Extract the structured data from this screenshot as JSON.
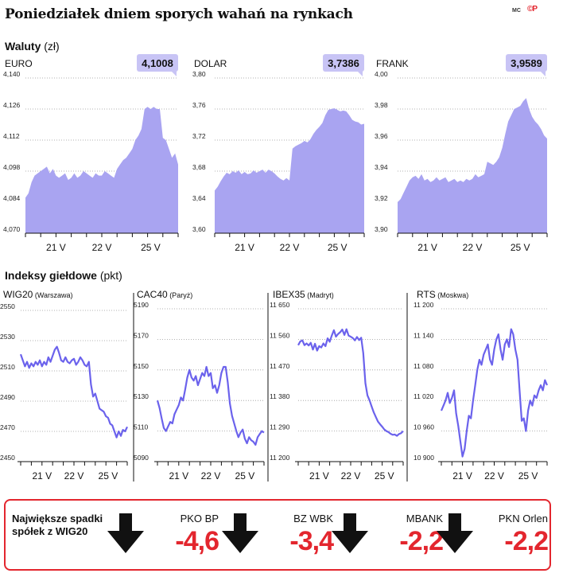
{
  "title": "Poniedziałek dniem sporych wahań na rynkach",
  "credit": "MC",
  "logo": "©P",
  "currencies_header": {
    "label": "Waluty",
    "unit": "(zł)"
  },
  "indices_header": {
    "label": "Indeksy giełdowe",
    "unit": "(pkt)"
  },
  "colors": {
    "fill": "#a9a4f1",
    "line": "#6b62ec",
    "accent": "#e3262e",
    "badge": "#c8c4f5"
  },
  "chart_data": [
    {
      "type": "area",
      "name": "EURO",
      "badge": "4,1008",
      "ylim": [
        4.07,
        4.14
      ],
      "yticks": [
        4.14,
        4.126,
        4.112,
        4.098,
        4.084,
        4.07
      ],
      "ytick_labels": [
        "4,140",
        "4,126",
        "4,112",
        "4,098",
        "4,084",
        "4,070"
      ],
      "xticks": [
        "21 V",
        "22 V",
        "25 V"
      ],
      "x": [
        0,
        2,
        4,
        6,
        8,
        10,
        12,
        14,
        16,
        18,
        20,
        22,
        24,
        26,
        28,
        30,
        32,
        34,
        36,
        38,
        40,
        42,
        44,
        46,
        48,
        50,
        52,
        54,
        56,
        58,
        60,
        62,
        64,
        66,
        68,
        70,
        72,
        74,
        76,
        78,
        80,
        82,
        84,
        86,
        88,
        90,
        92,
        94,
        96,
        98,
        100
      ],
      "values": [
        4.086,
        4.088,
        4.093,
        4.096,
        4.097,
        4.098,
        4.099,
        4.1,
        4.097,
        4.099,
        4.096,
        4.095,
        4.096,
        4.097,
        4.094,
        4.095,
        4.097,
        4.095,
        4.096,
        4.098,
        4.097,
        4.096,
        4.095,
        4.097,
        4.096,
        4.096,
        4.098,
        4.097,
        4.096,
        4.095,
        4.099,
        4.101,
        4.103,
        4.104,
        4.106,
        4.108,
        4.112,
        4.114,
        4.117,
        4.126,
        4.127,
        4.126,
        4.127,
        4.126,
        4.126,
        4.113,
        4.112,
        4.108,
        4.104,
        4.106,
        4.101
      ]
    },
    {
      "type": "area",
      "name": "DOLAR",
      "badge": "3,7386",
      "ylim": [
        3.6,
        3.8
      ],
      "yticks": [
        3.8,
        3.76,
        3.72,
        3.68,
        3.64,
        3.6
      ],
      "ytick_labels": [
        "3,80",
        "3,76",
        "3,72",
        "3,68",
        "3,64",
        "3,60"
      ],
      "xticks": [
        "21 V",
        "22 V",
        "25 V"
      ],
      "x": [
        0,
        2,
        4,
        6,
        8,
        10,
        12,
        14,
        16,
        18,
        20,
        22,
        24,
        26,
        28,
        30,
        32,
        34,
        36,
        38,
        40,
        42,
        44,
        46,
        48,
        50,
        52,
        54,
        56,
        58,
        60,
        62,
        64,
        66,
        68,
        70,
        72,
        74,
        76,
        78,
        80,
        82,
        84,
        86,
        88,
        90,
        92,
        94,
        96,
        98,
        100
      ],
      "values": [
        3.655,
        3.66,
        3.667,
        3.673,
        3.678,
        3.676,
        3.68,
        3.678,
        3.681,
        3.676,
        3.679,
        3.676,
        3.677,
        3.681,
        3.678,
        3.68,
        3.682,
        3.678,
        3.682,
        3.68,
        3.677,
        3.673,
        3.67,
        3.668,
        3.671,
        3.668,
        3.709,
        3.712,
        3.714,
        3.716,
        3.719,
        3.717,
        3.721,
        3.728,
        3.733,
        3.737,
        3.742,
        3.752,
        3.759,
        3.76,
        3.761,
        3.759,
        3.757,
        3.758,
        3.757,
        3.752,
        3.746,
        3.744,
        3.743,
        3.74,
        3.741
      ]
    },
    {
      "type": "area",
      "name": "FRANK",
      "badge": "3,9589",
      "ylim": [
        3.9,
        4.0
      ],
      "yticks": [
        4.0,
        3.98,
        3.96,
        3.94,
        3.92,
        3.9
      ],
      "ytick_labels": [
        "4,00",
        "3,98",
        "3,96",
        "3,94",
        "3,92",
        "3,90"
      ],
      "xticks": [
        "21 V",
        "22 V",
        "25 V"
      ],
      "x": [
        0,
        2,
        4,
        6,
        8,
        10,
        12,
        14,
        16,
        18,
        20,
        22,
        24,
        26,
        28,
        30,
        32,
        34,
        36,
        38,
        40,
        42,
        44,
        46,
        48,
        50,
        52,
        54,
        56,
        58,
        60,
        62,
        64,
        66,
        68,
        70,
        72,
        74,
        76,
        78,
        80,
        82,
        84,
        86,
        88,
        90,
        92,
        94,
        96,
        98,
        100
      ],
      "values": [
        3.92,
        3.922,
        3.926,
        3.93,
        3.934,
        3.936,
        3.937,
        3.935,
        3.938,
        3.934,
        3.935,
        3.933,
        3.934,
        3.936,
        3.934,
        3.935,
        3.936,
        3.933,
        3.934,
        3.935,
        3.933,
        3.934,
        3.933,
        3.935,
        3.934,
        3.935,
        3.938,
        3.936,
        3.937,
        3.938,
        3.946,
        3.945,
        3.944,
        3.946,
        3.949,
        3.955,
        3.964,
        3.972,
        3.976,
        3.98,
        3.981,
        3.982,
        3.985,
        3.987,
        3.98,
        3.975,
        3.972,
        3.97,
        3.967,
        3.963,
        3.961
      ]
    },
    {
      "type": "line",
      "name": "WIG20",
      "sub": "(Warszawa)",
      "ylim": [
        2450,
        2550
      ],
      "yticks": [
        2550,
        2530,
        2510,
        2490,
        2470,
        2450
      ],
      "ytick_labels": [
        "2550",
        "2530",
        "2510",
        "2490",
        "2470",
        "2450"
      ],
      "xticks": [
        "21 V",
        "22 V",
        "25 V"
      ],
      "x": [
        0,
        2,
        4,
        6,
        8,
        10,
        12,
        14,
        16,
        18,
        20,
        22,
        24,
        26,
        28,
        30,
        32,
        34,
        36,
        38,
        40,
        42,
        44,
        46,
        48,
        50,
        52,
        54,
        56,
        58,
        60,
        62,
        64,
        66,
        68,
        70,
        72,
        74,
        76,
        78,
        80,
        82,
        84,
        86,
        88,
        90,
        92,
        94,
        96,
        98,
        100
      ],
      "values": [
        2521,
        2517,
        2513,
        2516,
        2512,
        2515,
        2513,
        2516,
        2514,
        2517,
        2513,
        2516,
        2514,
        2519,
        2516,
        2520,
        2524,
        2526,
        2522,
        2517,
        2516,
        2519,
        2516,
        2515,
        2517,
        2518,
        2514,
        2516,
        2519,
        2517,
        2514,
        2513,
        2516,
        2501,
        2493,
        2495,
        2490,
        2485,
        2484,
        2483,
        2480,
        2479,
        2475,
        2474,
        2470,
        2466,
        2470,
        2467,
        2471,
        2470,
        2473
      ]
    },
    {
      "type": "line",
      "name": "CAC40",
      "sub": "(Paryż)",
      "ylim": [
        5090,
        5190
      ],
      "yticks": [
        5190,
        5170,
        5150,
        5130,
        5110,
        5090
      ],
      "ytick_labels": [
        "5190",
        "5170",
        "5150",
        "5130",
        "5110",
        "5090"
      ],
      "xticks": [
        "21 V",
        "22 V",
        "25 V"
      ],
      "x": [
        0,
        2,
        4,
        6,
        8,
        10,
        12,
        14,
        16,
        18,
        20,
        22,
        24,
        26,
        28,
        30,
        32,
        34,
        36,
        38,
        40,
        42,
        44,
        46,
        48,
        50,
        52,
        54,
        56,
        58,
        60,
        62,
        64,
        66,
        68,
        70,
        72,
        74,
        76,
        78,
        80,
        82,
        84,
        86,
        88,
        90,
        92,
        94,
        96,
        98,
        100
      ],
      "values": [
        5130,
        5125,
        5118,
        5112,
        5110,
        5113,
        5116,
        5115,
        5121,
        5124,
        5127,
        5132,
        5130,
        5137,
        5145,
        5150,
        5145,
        5143,
        5146,
        5140,
        5144,
        5148,
        5146,
        5152,
        5146,
        5148,
        5138,
        5140,
        5135,
        5140,
        5148,
        5152,
        5152,
        5142,
        5128,
        5120,
        5115,
        5110,
        5106,
        5109,
        5111,
        5105,
        5102,
        5106,
        5104,
        5103,
        5101,
        5106,
        5108,
        5110,
        5109
      ]
    },
    {
      "type": "line",
      "name": "IBEX35",
      "sub": "(Madryt)",
      "ylim": [
        11200,
        11650
      ],
      "yticks": [
        11650,
        11560,
        11470,
        11380,
        11290,
        11200
      ],
      "ytick_labels": [
        "11 650",
        "11 560",
        "11 470",
        "11 380",
        "11 290",
        "11 200"
      ],
      "xticks": [
        "21 V",
        "22 V",
        "25 V"
      ],
      "x": [
        0,
        2,
        4,
        6,
        8,
        10,
        12,
        14,
        16,
        18,
        20,
        22,
        24,
        26,
        28,
        30,
        32,
        34,
        36,
        38,
        40,
        42,
        44,
        46,
        48,
        50,
        52,
        54,
        56,
        58,
        60,
        62,
        64,
        66,
        68,
        70,
        72,
        74,
        76,
        78,
        80,
        82,
        84,
        86,
        88,
        90,
        92,
        94,
        96,
        98,
        100
      ],
      "values": [
        11543,
        11554,
        11557,
        11543,
        11548,
        11542,
        11550,
        11530,
        11547,
        11527,
        11540,
        11536,
        11548,
        11540,
        11563,
        11553,
        11571,
        11587,
        11568,
        11576,
        11581,
        11589,
        11573,
        11590,
        11571,
        11568,
        11564,
        11557,
        11567,
        11558,
        11565,
        11520,
        11431,
        11395,
        11380,
        11362,
        11345,
        11331,
        11318,
        11310,
        11303,
        11295,
        11290,
        11287,
        11282,
        11279,
        11280,
        11276,
        11281,
        11284,
        11290
      ]
    },
    {
      "type": "line",
      "name": "RTS",
      "sub": "(Moskwa)",
      "ylim": [
        10900,
        11200
      ],
      "yticks": [
        11200,
        11140,
        11080,
        11020,
        10960,
        10900
      ],
      "ytick_labels": [
        "11 200",
        "11 140",
        "11 080",
        "11 020",
        "10 960",
        "10 900"
      ],
      "xticks": [
        "21 V",
        "22 V",
        "25 V"
      ],
      "x": [
        0,
        2,
        4,
        6,
        8,
        10,
        12,
        14,
        16,
        18,
        20,
        22,
        24,
        26,
        28,
        30,
        32,
        34,
        36,
        38,
        40,
        42,
        44,
        46,
        48,
        50,
        52,
        54,
        56,
        58,
        60,
        62,
        64,
        66,
        68,
        70,
        72,
        74,
        76,
        78,
        80,
        82,
        84,
        86,
        88,
        90,
        92,
        94,
        96,
        98,
        100
      ],
      "values": [
        11000,
        11010,
        11020,
        11035,
        11015,
        11025,
        11040,
        10995,
        10970,
        10940,
        10910,
        10925,
        10960,
        10990,
        10985,
        11020,
        11050,
        11080,
        11100,
        11090,
        11110,
        11120,
        11130,
        11100,
        11090,
        11120,
        11140,
        11150,
        11120,
        11100,
        11130,
        11140,
        11125,
        11160,
        11150,
        11120,
        11100,
        11040,
        10980,
        10985,
        10960,
        11000,
        11020,
        11010,
        11030,
        11025,
        11040,
        11050,
        11040,
        11060,
        11050
      ]
    }
  ],
  "drops": {
    "label": "Największe spadki spółek z WIG20",
    "items": [
      {
        "name": "PKO BP",
        "value": "-4,6"
      },
      {
        "name": "BZ WBK",
        "value": "-3,4"
      },
      {
        "name": "MBANK",
        "value": "-2,2"
      },
      {
        "name": "PKN Orlen",
        "value": "-2,2"
      }
    ]
  }
}
